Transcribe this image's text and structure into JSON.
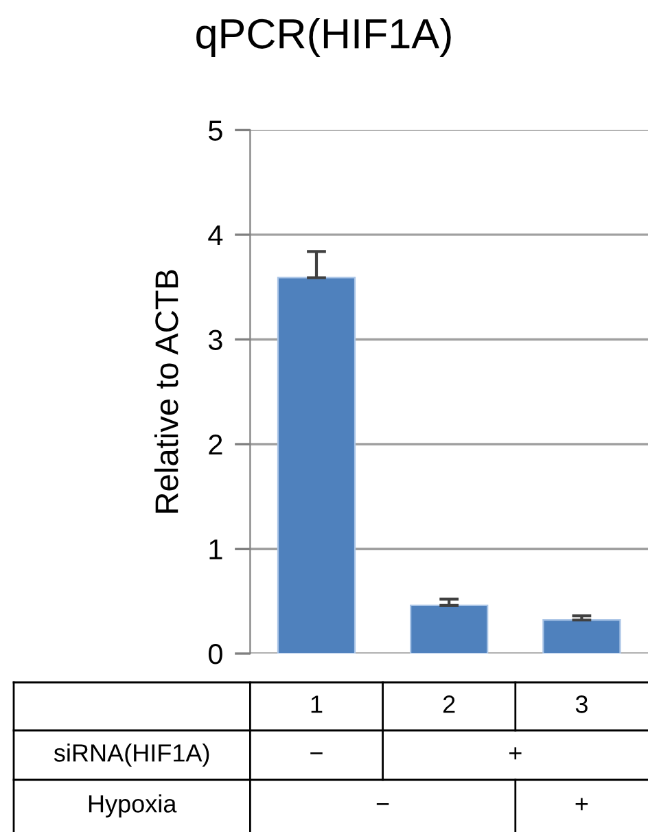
{
  "chart_data": {
    "type": "bar",
    "title": "qPCR(HIF1A)",
    "ylabel": "Relative to ACTB",
    "categories": [
      "1",
      "2",
      "3"
    ],
    "values": [
      3.59,
      0.46,
      0.32
    ],
    "errors": [
      [
        3.59,
        3.84
      ],
      [
        0.46,
        0.52
      ],
      [
        0.32,
        0.36
      ]
    ],
    "color": "#4f81bd",
    "ylim": [
      0,
      5
    ],
    "yticks": [
      0,
      1,
      2,
      3,
      4,
      5
    ],
    "grid": "y",
    "annotations": [
      "siRNA(HIF1A)",
      "−",
      "+",
      "Hypoxia",
      "−",
      "+"
    ]
  }
}
